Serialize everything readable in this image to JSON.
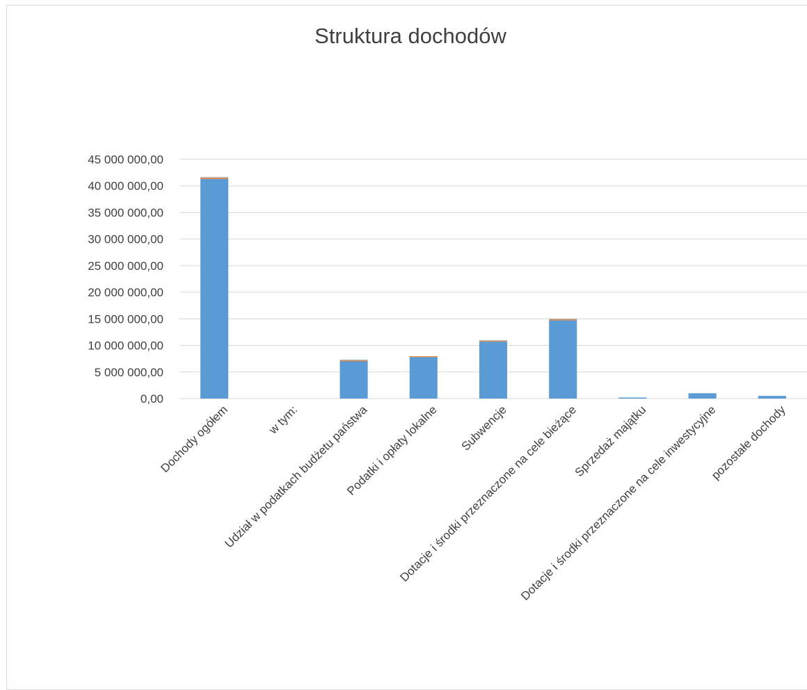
{
  "chart_data": {
    "type": "bar",
    "stacked": true,
    "title": "Struktura dochodów",
    "xlabel": "",
    "ylabel": "",
    "ylim": [
      0,
      45000000
    ],
    "grid": true,
    "legend": "none",
    "yticks": [
      0,
      5000000,
      10000000,
      15000000,
      20000000,
      25000000,
      30000000,
      35000000,
      40000000,
      45000000
    ],
    "ytick_labels": [
      "0,00",
      "5 000 000,00",
      "10 000 000,00",
      "15 000 000,00",
      "20 000 000,00",
      "25 000 000,00",
      "30 000 000,00",
      "35 000 000,00",
      "40 000 000,00",
      "45 000 000,00"
    ],
    "categories": [
      "Dochody ogółem",
      "w tym:",
      "Udział w podatkach budżetu państwa",
      "Podatki i opłaty lokalne",
      "Subwencje",
      "Dotacje i środki przeznaczone na cele bieżące",
      "Sprzedaż majątku",
      "Dotacje i środki przeznaczone na cele inwestycyjne",
      "pozostałe dochody"
    ],
    "series": [
      {
        "values": [
          41300000,
          0,
          7000000,
          7800000,
          10700000,
          14700000,
          200000,
          1000000,
          500000
        ]
      },
      {
        "values": [
          200000,
          0,
          150000,
          20000,
          100000,
          150000,
          0,
          0,
          0
        ]
      },
      {
        "values": [
          100000,
          0,
          100000,
          0,
          100000,
          100000,
          0,
          0,
          0
        ]
      }
    ],
    "colors": [
      "#5b9bd5",
      "#ed7d31",
      "#a5a5a5"
    ]
  }
}
